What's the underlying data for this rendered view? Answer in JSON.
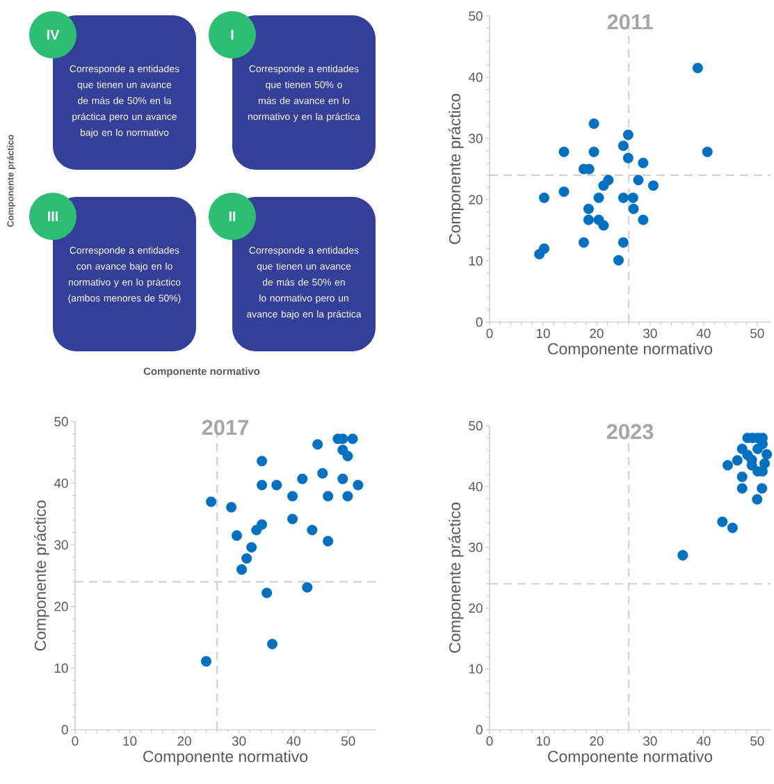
{
  "chart_data": [
    {
      "type": "other",
      "xlabel": "Componente normativo",
      "ylabel": "Componente práctico",
      "annotations": [
        "IV",
        "Corresponde a entidades que tienen un avance de más de 50% en la práctica pero un avance bajo en lo normativo",
        "I",
        "Corresponde a entidades que tienen 50% o más de avance en lo normativo y en la práctica",
        "III",
        "Corresponde a entidades con avance bajo en lo normativo y en lo práctico (ambos menores de 50%)",
        "II",
        "Corresponde a entidades que tienen un avance de más de 50% en lo normativo pero un avance bajo en la práctica"
      ]
    },
    {
      "type": "scatter",
      "title": "2011",
      "xlabel": "Componente normativo",
      "ylabel": "Componente práctico",
      "xlim": [
        0,
        52.5
      ],
      "ylim": [
        0,
        50
      ],
      "xticks": [
        0,
        10,
        20,
        30,
        40,
        50
      ],
      "yticks": [
        0,
        10,
        20,
        30,
        40,
        50
      ],
      "ref_lines": [
        {
          "axis": "x",
          "value": 26,
          "color": "#d0d0d0",
          "line_style": "dashed"
        },
        {
          "axis": "y",
          "value": 24,
          "color": "#d0d0d0",
          "line_style": "dashed"
        }
      ],
      "series": [
        {
          "color": "#0070c0",
          "x": [
            38.9,
            19.5,
            25.9,
            25.0,
            13.9,
            19.5,
            40.7,
            25.9,
            28.7,
            17.6,
            18.6,
            22.2,
            27.8,
            21.3,
            30.6,
            13.9,
            10.2,
            20.4,
            25.0,
            26.8,
            18.5,
            26.9,
            18.5,
            20.4,
            28.7,
            21.3,
            17.6,
            25.0,
            10.2,
            9.3,
            24.1
          ],
          "values": [
            41.5,
            32.4,
            30.6,
            28.8,
            27.8,
            27.8,
            27.8,
            26.8,
            26.0,
            25.0,
            25.0,
            23.2,
            23.2,
            22.3,
            22.3,
            21.3,
            20.3,
            20.3,
            20.3,
            20.3,
            18.5,
            18.5,
            16.7,
            16.7,
            16.7,
            15.8,
            13.0,
            13.0,
            12.0,
            11.1,
            10.1
          ]
        }
      ]
    },
    {
      "type": "scatter",
      "title": "2017",
      "xlabel": "Componente normativo",
      "ylabel": "Componente práctico",
      "xlim": [
        0,
        55
      ],
      "ylim": [
        0,
        50
      ],
      "xticks": [
        0,
        10,
        20,
        30,
        40,
        50
      ],
      "yticks": [
        0,
        10,
        20,
        30,
        40,
        50
      ],
      "ref_lines": [
        {
          "axis": "x",
          "value": 26,
          "color": "#d0d0d0",
          "line_style": "dashed"
        },
        {
          "axis": "y",
          "value": 24,
          "color": "#d0d0d0",
          "line_style": "dashed"
        }
      ],
      "series": [
        {
          "color": "#0070c0",
          "x": [
            50.8,
            48.1,
            49.0,
            44.4,
            49.0,
            49.9,
            34.2,
            45.3,
            41.6,
            49.0,
            34.2,
            36.9,
            51.8,
            39.8,
            46.3,
            49.9,
            24.9,
            28.6,
            39.8,
            34.2,
            33.2,
            43.4,
            29.6,
            46.3,
            32.3,
            31.4,
            30.5,
            42.5,
            35.1,
            36.1,
            24.0
          ],
          "values": [
            47.2,
            47.2,
            47.2,
            46.3,
            45.4,
            44.4,
            43.6,
            41.6,
            40.7,
            40.7,
            39.7,
            39.7,
            39.7,
            37.9,
            37.9,
            37.9,
            37.0,
            36.1,
            34.2,
            33.3,
            32.4,
            32.4,
            31.5,
            30.6,
            29.6,
            27.8,
            26.0,
            23.1,
            22.2,
            13.9,
            11.1
          ]
        }
      ]
    },
    {
      "type": "scatter",
      "title": "2023",
      "xlabel": "Componente normativo",
      "ylabel": "Componente práctico",
      "xlim": [
        0,
        52.5
      ],
      "ylim": [
        0,
        50
      ],
      "xticks": [
        0,
        10,
        20,
        30,
        40,
        50
      ],
      "yticks": [
        0,
        10,
        20,
        30,
        40,
        50
      ],
      "ref_lines": [
        {
          "axis": "x",
          "value": 26,
          "color": "#d0d0d0",
          "line_style": "dashed"
        },
        {
          "axis": "y",
          "value": 24,
          "color": "#d0d0d0",
          "line_style": "dashed"
        }
      ],
      "series": [
        {
          "color": "#0070c0",
          "x": [
            36.1,
            43.5,
            45.4,
            44.5,
            46.3,
            47.2,
            47.2,
            47.2,
            50.0,
            50.9,
            48.2,
            49.1,
            50.1,
            51.0,
            50.1,
            51.0,
            48.2,
            49.0,
            51.8,
            49.0,
            50.1,
            51.0,
            51.4
          ],
          "values": [
            28.7,
            34.2,
            33.2,
            43.5,
            44.3,
            46.2,
            41.6,
            39.7,
            37.9,
            39.7,
            48.0,
            48.0,
            48.0,
            48.0,
            46.2,
            47.0,
            45.2,
            44.4,
            45.3,
            43.5,
            42.5,
            42.5,
            43.8
          ]
        }
      ]
    }
  ]
}
